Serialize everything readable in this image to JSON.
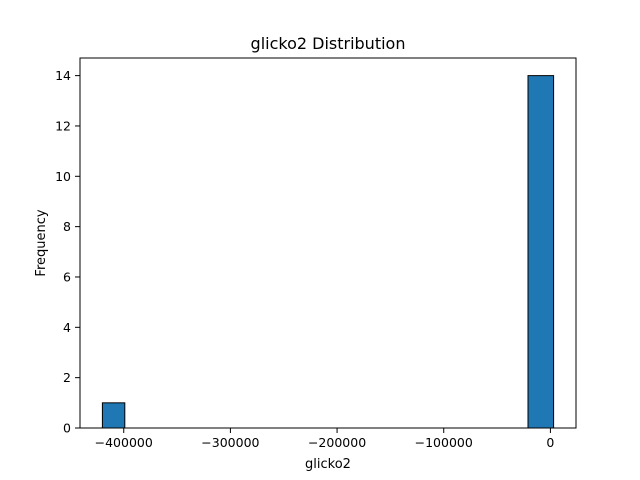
{
  "chart_data": {
    "type": "histogram",
    "title": "glicko2 Distribution",
    "xlabel": "glicko2",
    "ylabel": "Frequency",
    "xlim": [
      -441000,
      24000
    ],
    "ylim": [
      0,
      14.7
    ],
    "grid": false,
    "bar_color": "#1f77b4",
    "edge_color": "#000000",
    "x_ticks": [
      {
        "value": -400000,
        "label": "−400000"
      },
      {
        "value": -300000,
        "label": "−300000"
      },
      {
        "value": -200000,
        "label": "−200000"
      },
      {
        "value": -100000,
        "label": "−100000"
      },
      {
        "value": 0,
        "label": "0"
      }
    ],
    "y_ticks": [
      {
        "value": 0,
        "label": "0"
      },
      {
        "value": 2,
        "label": "2"
      },
      {
        "value": 4,
        "label": "4"
      },
      {
        "value": 6,
        "label": "6"
      },
      {
        "value": 8,
        "label": "8"
      },
      {
        "value": 10,
        "label": "10"
      },
      {
        "value": 12,
        "label": "12"
      },
      {
        "value": 14,
        "label": "14"
      }
    ],
    "bins": [
      {
        "x0": -420000,
        "x1": -399000,
        "count": 1
      },
      {
        "x0": -399000,
        "x1": -378000,
        "count": 0
      },
      {
        "x0": -378000,
        "x1": -357000,
        "count": 0
      },
      {
        "x0": -357000,
        "x1": -336000,
        "count": 0
      },
      {
        "x0": -336000,
        "x1": -315000,
        "count": 0
      },
      {
        "x0": -315000,
        "x1": -294000,
        "count": 0
      },
      {
        "x0": -294000,
        "x1": -273000,
        "count": 0
      },
      {
        "x0": -273000,
        "x1": -252000,
        "count": 0
      },
      {
        "x0": -252000,
        "x1": -231000,
        "count": 0
      },
      {
        "x0": -231000,
        "x1": -210000,
        "count": 0
      },
      {
        "x0": -210000,
        "x1": -189000,
        "count": 0
      },
      {
        "x0": -189000,
        "x1": -168000,
        "count": 0
      },
      {
        "x0": -168000,
        "x1": -147000,
        "count": 0
      },
      {
        "x0": -147000,
        "x1": -126000,
        "count": 0
      },
      {
        "x0": -126000,
        "x1": -105000,
        "count": 0
      },
      {
        "x0": -105000,
        "x1": -84000,
        "count": 0
      },
      {
        "x0": -84000,
        "x1": -63000,
        "count": 0
      },
      {
        "x0": -63000,
        "x1": -42000,
        "count": 0
      },
      {
        "x0": -42000,
        "x1": -21000,
        "count": 0
      },
      {
        "x0": -21000,
        "x1": 3000,
        "count": 14
      }
    ]
  }
}
